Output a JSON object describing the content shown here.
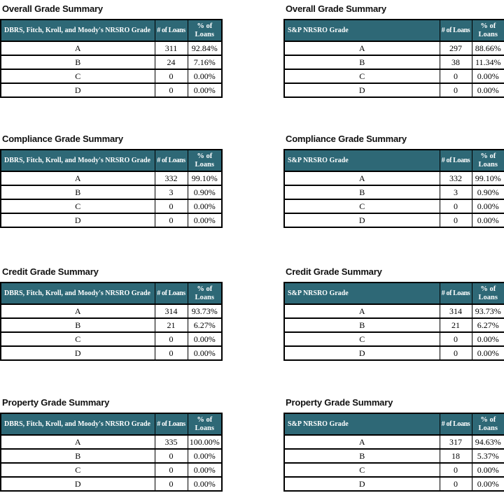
{
  "colors": {
    "header_bg": "#2E6876",
    "header_text": "#FFFFFF",
    "border": "#000000",
    "page_bg": "#FFFFFF"
  },
  "tables": [
    {
      "title": "Overall Grade Summary",
      "columns": [
        "DBRS, Fitch, Kroll, and Moody's NRSRO Grade",
        "# of Loans",
        "% of Loans"
      ],
      "rows": [
        [
          "A",
          "311",
          "92.84%"
        ],
        [
          "B",
          "24",
          "7.16%"
        ],
        [
          "C",
          "0",
          "0.00%"
        ],
        [
          "D",
          "0",
          "0.00%"
        ]
      ]
    },
    {
      "title": "Overall Grade Summary",
      "columns": [
        "S&P NRSRO Grade",
        "# of Loans",
        "% of Loans"
      ],
      "rows": [
        [
          "A",
          "297",
          "88.66%"
        ],
        [
          "B",
          "38",
          "11.34%"
        ],
        [
          "C",
          "0",
          "0.00%"
        ],
        [
          "D",
          "0",
          "0.00%"
        ]
      ]
    },
    {
      "title": "Compliance Grade Summary",
      "columns": [
        "DBRS, Fitch, Kroll, and Moody's NRSRO Grade",
        "# of Loans",
        "% of Loans"
      ],
      "rows": [
        [
          "A",
          "332",
          "99.10%"
        ],
        [
          "B",
          "3",
          "0.90%"
        ],
        [
          "C",
          "0",
          "0.00%"
        ],
        [
          "D",
          "0",
          "0.00%"
        ]
      ]
    },
    {
      "title": "Compliance Grade Summary",
      "columns": [
        "S&P NRSRO Grade",
        "# of Loans",
        "% of Loans"
      ],
      "rows": [
        [
          "A",
          "332",
          "99.10%"
        ],
        [
          "B",
          "3",
          "0.90%"
        ],
        [
          "C",
          "0",
          "0.00%"
        ],
        [
          "D",
          "0",
          "0.00%"
        ]
      ]
    },
    {
      "title": "Credit Grade Summary",
      "columns": [
        "DBRS, Fitch, Kroll, and Moody's NRSRO Grade",
        "# of Loans",
        "% of Loans"
      ],
      "rows": [
        [
          "A",
          "314",
          "93.73%"
        ],
        [
          "B",
          "21",
          "6.27%"
        ],
        [
          "C",
          "0",
          "0.00%"
        ],
        [
          "D",
          "0",
          "0.00%"
        ]
      ]
    },
    {
      "title": "Credit Grade Summary",
      "columns": [
        "S&P NRSRO Grade",
        "# of Loans",
        "% of Loans"
      ],
      "rows": [
        [
          "A",
          "314",
          "93.73%"
        ],
        [
          "B",
          "21",
          "6.27%"
        ],
        [
          "C",
          "0",
          "0.00%"
        ],
        [
          "D",
          "0",
          "0.00%"
        ]
      ]
    },
    {
      "title": "Property Grade Summary",
      "columns": [
        "DBRS, Fitch, Kroll, and Moody's NRSRO Grade",
        "# of Loans",
        "% of Loans"
      ],
      "rows": [
        [
          "A",
          "335",
          "100.00%"
        ],
        [
          "B",
          "0",
          "0.00%"
        ],
        [
          "C",
          "0",
          "0.00%"
        ],
        [
          "D",
          "0",
          "0.00%"
        ]
      ]
    },
    {
      "title": "Property Grade Summary",
      "columns": [
        "S&P NRSRO Grade",
        "# of Loans",
        "% of Loans"
      ],
      "rows": [
        [
          "A",
          "317",
          "94.63%"
        ],
        [
          "B",
          "18",
          "5.37%"
        ],
        [
          "C",
          "0",
          "0.00%"
        ],
        [
          "D",
          "0",
          "0.00%"
        ]
      ]
    }
  ]
}
